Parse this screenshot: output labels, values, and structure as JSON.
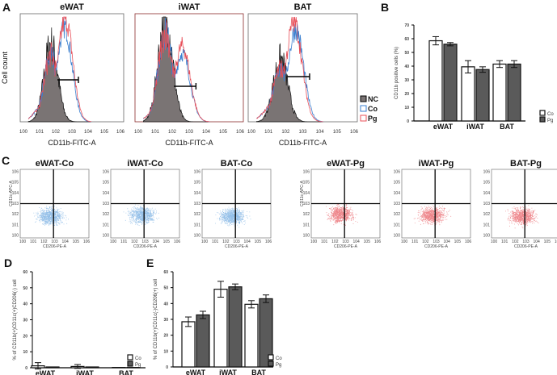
{
  "panels": {
    "A": "A",
    "B": "B",
    "C": "C",
    "D": "D",
    "E": "E"
  },
  "chart_data": [
    {
      "id": "A",
      "type": "histogram",
      "ylabel": "Cell count",
      "xlabel": "CD11b-FITC-A",
      "xticks": [
        "10^0",
        "10^1",
        "10^2",
        "10^3",
        "10^4",
        "10^5",
        "10^6"
      ],
      "legend": [
        "NC",
        "Co",
        "Pg"
      ],
      "colors": {
        "NC": "#7a7474",
        "Co": "#3a7fd0",
        "Pg": "#e8505a"
      },
      "panels": [
        {
          "title": "eWAT",
          "nc_peak_log": 1.7,
          "co_peak_log": 2.55,
          "pg_peak_log": 2.6,
          "co_height": 0.9,
          "pg_height": 0.98,
          "nc_height": 0.75,
          "gate_log": [
            2.1,
            3.4
          ]
        },
        {
          "title": "iWAT",
          "nc_peak_log": 1.6,
          "co_peak_log": 2.6,
          "pg_peak_log": 2.6,
          "co_height": 0.65,
          "pg_height": 0.72,
          "nc_height": 1.0,
          "gate_log": [
            2.1,
            3.4
          ]
        },
        {
          "title": "BAT",
          "nc_peak_log": 1.7,
          "co_peak_log": 2.6,
          "pg_peak_log": 2.5,
          "co_height": 0.88,
          "pg_height": 0.95,
          "nc_height": 0.6,
          "gate_log": [
            2.1,
            3.4
          ]
        }
      ]
    },
    {
      "id": "B",
      "type": "bar",
      "ylabel": "CD11b positive cells (%)",
      "ylim": [
        0,
        70
      ],
      "yticks": [
        0,
        10,
        20,
        30,
        40,
        50,
        60,
        70
      ],
      "categories": [
        "eWAT",
        "iWAT",
        "BAT"
      ],
      "series": [
        {
          "name": "Co",
          "values": [
            58.5,
            39.5,
            41.5
          ],
          "errors": [
            3,
            4.5,
            2.5
          ],
          "color": "#ffffff"
        },
        {
          "name": "Pg",
          "values": [
            56,
            37.5,
            41.5
          ],
          "errors": [
            1.2,
            2,
            2.5
          ],
          "color": "#5a5a5a"
        }
      ]
    },
    {
      "id": "C",
      "type": "scatter",
      "xlabel": "CD206-PE-A",
      "ylabel": "CD11c-APC-A",
      "ticks": [
        "10^0",
        "10^1",
        "10^2",
        "10^3",
        "10^4",
        "10^5",
        "10^6"
      ],
      "plots": [
        {
          "title": "eWAT-Co",
          "color": "#3a8ad6",
          "cx_log": 2.6,
          "cy_log": 1.8
        },
        {
          "title": "iWAT-Co",
          "color": "#3a8ad6",
          "cx_log": 2.7,
          "cy_log": 1.9
        },
        {
          "title": "BAT-Co",
          "color": "#3a8ad6",
          "cx_log": 2.6,
          "cy_log": 1.8
        },
        {
          "title": "eWAT-Pg",
          "color": "#e0202a",
          "cx_log": 2.5,
          "cy_log": 2.0
        },
        {
          "title": "iWAT-Pg",
          "color": "#e0202a",
          "cx_log": 2.6,
          "cy_log": 1.9
        },
        {
          "title": "BAT-Pg",
          "color": "#e0202a",
          "cx_log": 2.7,
          "cy_log": 1.8
        }
      ]
    },
    {
      "id": "D",
      "type": "bar",
      "ylabel": "% of CD11b(+)CD11c(+)CD206(-) cell",
      "ylim": [
        0,
        60
      ],
      "yticks": [
        0,
        10,
        20,
        30,
        40,
        50,
        60
      ],
      "categories": [
        "eWAT",
        "iWAT",
        "BAT"
      ],
      "series": [
        {
          "name": "Co",
          "values": [
            1.2,
            0.8,
            0.2
          ],
          "errors": [
            2,
            1.2,
            0
          ],
          "color": "#ffffff"
        },
        {
          "name": "Pg",
          "values": [
            0.5,
            0.5,
            0.2
          ],
          "errors": [
            0,
            0,
            0
          ],
          "color": "#5a5a5a"
        }
      ]
    },
    {
      "id": "E",
      "type": "bar",
      "ylabel": "% of CD11b(+)CD11c(-)CD206(+) cell",
      "ylim": [
        0,
        60
      ],
      "yticks": [
        0,
        10,
        20,
        30,
        40,
        50,
        60
      ],
      "categories": [
        "eWAT",
        "iWAT",
        "BAT"
      ],
      "series": [
        {
          "name": "Co",
          "values": [
            28.5,
            49,
            39.5
          ],
          "errors": [
            3,
            5,
            2.3
          ],
          "color": "#ffffff"
        },
        {
          "name": "Pg",
          "values": [
            32.8,
            50.5,
            43
          ],
          "errors": [
            2.3,
            1.8,
            2.4
          ],
          "color": "#5a5a5a"
        }
      ]
    }
  ]
}
